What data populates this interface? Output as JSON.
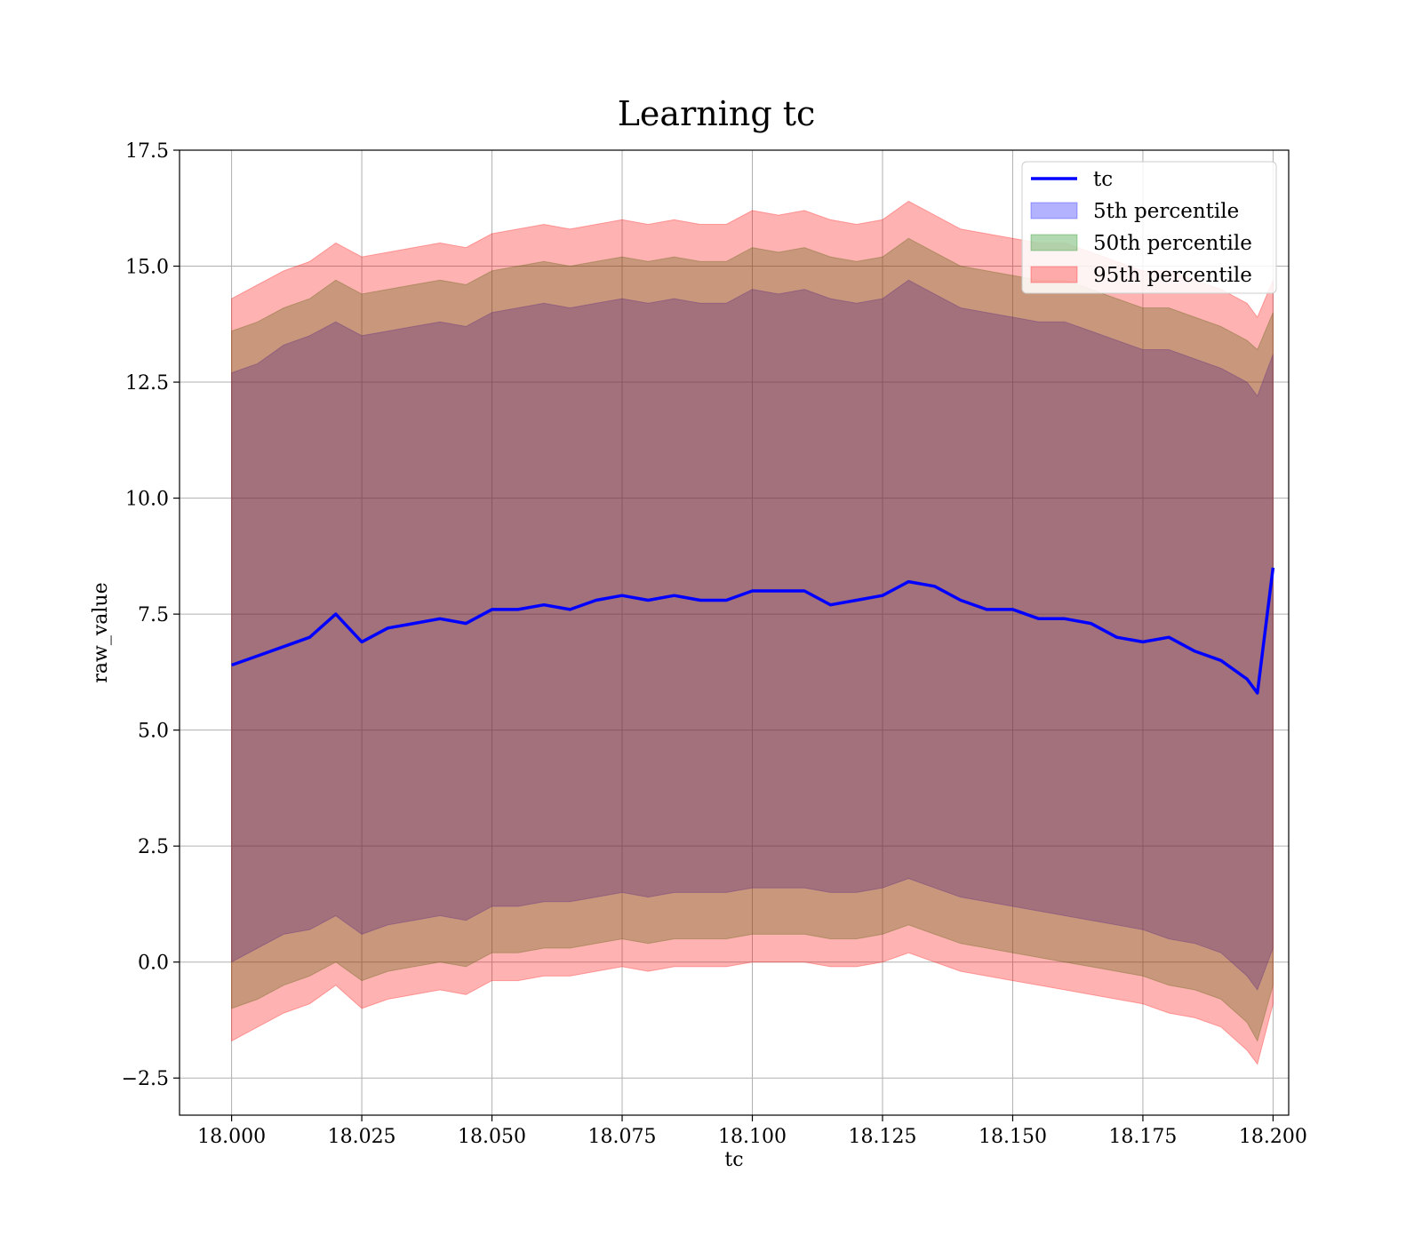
{
  "chart_data": {
    "type": "line",
    "title": "Learning tc",
    "xlabel": "tc",
    "ylabel": "raw_value",
    "xlim": [
      17.99,
      18.203
    ],
    "ylim": [
      -3.3,
      17.5
    ],
    "xticks": [
      18.0,
      18.025,
      18.05,
      18.075,
      18.1,
      18.125,
      18.15,
      18.175,
      18.2
    ],
    "xtick_labels": [
      "18.000",
      "18.025",
      "18.050",
      "18.075",
      "18.100",
      "18.125",
      "18.150",
      "18.175",
      "18.200"
    ],
    "yticks": [
      -2.5,
      0.0,
      2.5,
      5.0,
      7.5,
      10.0,
      12.5,
      15.0,
      17.5
    ],
    "ytick_labels": [
      "−2.5",
      "0.0",
      "2.5",
      "5.0",
      "7.5",
      "10.0",
      "12.5",
      "15.0",
      "17.5"
    ],
    "grid": true,
    "legend_position": "top-right",
    "x": [
      18.0,
      18.005,
      18.01,
      18.015,
      18.02,
      18.025,
      18.03,
      18.035,
      18.04,
      18.045,
      18.05,
      18.055,
      18.06,
      18.065,
      18.07,
      18.075,
      18.08,
      18.085,
      18.09,
      18.095,
      18.1,
      18.105,
      18.11,
      18.115,
      18.12,
      18.125,
      18.13,
      18.135,
      18.14,
      18.145,
      18.15,
      18.155,
      18.16,
      18.165,
      18.17,
      18.175,
      18.18,
      18.185,
      18.19,
      18.195,
      18.197,
      18.2
    ],
    "series": [
      {
        "name": "tc",
        "kind": "line",
        "color": "#0000ff",
        "values": [
          6.4,
          6.6,
          6.8,
          7.0,
          7.5,
          6.9,
          7.2,
          7.3,
          7.4,
          7.3,
          7.6,
          7.6,
          7.7,
          7.6,
          7.8,
          7.9,
          7.8,
          7.9,
          7.8,
          7.8,
          8.0,
          8.0,
          8.0,
          7.7,
          7.8,
          7.9,
          8.2,
          8.1,
          7.8,
          7.6,
          7.6,
          7.4,
          7.4,
          7.3,
          7.0,
          6.9,
          7.0,
          6.7,
          6.5,
          6.1,
          5.8,
          8.5
        ]
      },
      {
        "name": "5th percentile",
        "kind": "band",
        "color": "#0000ff",
        "lower": [
          0.0,
          0.3,
          0.6,
          0.7,
          1.0,
          0.6,
          0.8,
          0.9,
          1.0,
          0.9,
          1.2,
          1.2,
          1.3,
          1.3,
          1.4,
          1.5,
          1.4,
          1.5,
          1.5,
          1.5,
          1.6,
          1.6,
          1.6,
          1.5,
          1.5,
          1.6,
          1.8,
          1.6,
          1.4,
          1.3,
          1.2,
          1.1,
          1.0,
          0.9,
          0.8,
          0.7,
          0.5,
          0.4,
          0.2,
          -0.3,
          -0.6,
          0.3
        ],
        "upper": [
          12.7,
          12.9,
          13.3,
          13.5,
          13.8,
          13.5,
          13.6,
          13.7,
          13.8,
          13.7,
          14.0,
          14.1,
          14.2,
          14.1,
          14.2,
          14.3,
          14.2,
          14.3,
          14.2,
          14.2,
          14.5,
          14.4,
          14.5,
          14.3,
          14.2,
          14.3,
          14.7,
          14.4,
          14.1,
          14.0,
          13.9,
          13.8,
          13.8,
          13.6,
          13.4,
          13.2,
          13.2,
          13.0,
          12.8,
          12.5,
          12.2,
          13.1
        ]
      },
      {
        "name": "50th percentile",
        "kind": "band",
        "color": "#008000",
        "lower": [
          -1.0,
          -0.8,
          -0.5,
          -0.3,
          0.0,
          -0.4,
          -0.2,
          -0.1,
          0.0,
          -0.1,
          0.2,
          0.2,
          0.3,
          0.3,
          0.4,
          0.5,
          0.4,
          0.5,
          0.5,
          0.5,
          0.6,
          0.6,
          0.6,
          0.5,
          0.5,
          0.6,
          0.8,
          0.6,
          0.4,
          0.3,
          0.2,
          0.1,
          0.0,
          -0.1,
          -0.2,
          -0.3,
          -0.5,
          -0.6,
          -0.8,
          -1.3,
          -1.7,
          -0.5
        ],
        "upper": [
          13.6,
          13.8,
          14.1,
          14.3,
          14.7,
          14.4,
          14.5,
          14.6,
          14.7,
          14.6,
          14.9,
          15.0,
          15.1,
          15.0,
          15.1,
          15.2,
          15.1,
          15.2,
          15.1,
          15.1,
          15.4,
          15.3,
          15.4,
          15.2,
          15.1,
          15.2,
          15.6,
          15.3,
          15.0,
          14.9,
          14.8,
          14.7,
          14.7,
          14.5,
          14.3,
          14.1,
          14.1,
          13.9,
          13.7,
          13.4,
          13.2,
          14.0
        ]
      },
      {
        "name": "95th percentile",
        "kind": "band",
        "color": "#ff0000",
        "lower": [
          -1.7,
          -1.4,
          -1.1,
          -0.9,
          -0.5,
          -1.0,
          -0.8,
          -0.7,
          -0.6,
          -0.7,
          -0.4,
          -0.4,
          -0.3,
          -0.3,
          -0.2,
          -0.1,
          -0.2,
          -0.1,
          -0.1,
          -0.1,
          0.0,
          0.0,
          0.0,
          -0.1,
          -0.1,
          0.0,
          0.2,
          0.0,
          -0.2,
          -0.3,
          -0.4,
          -0.5,
          -0.6,
          -0.7,
          -0.8,
          -0.9,
          -1.1,
          -1.2,
          -1.4,
          -1.9,
          -2.2,
          -0.9
        ],
        "upper": [
          14.3,
          14.6,
          14.9,
          15.1,
          15.5,
          15.2,
          15.3,
          15.4,
          15.5,
          15.4,
          15.7,
          15.8,
          15.9,
          15.8,
          15.9,
          16.0,
          15.9,
          16.0,
          15.9,
          15.9,
          16.2,
          16.1,
          16.2,
          16.0,
          15.9,
          16.0,
          16.4,
          16.1,
          15.8,
          15.7,
          15.6,
          15.5,
          15.5,
          15.3,
          15.1,
          14.9,
          14.9,
          14.7,
          14.5,
          14.2,
          13.9,
          14.7
        ]
      }
    ]
  }
}
